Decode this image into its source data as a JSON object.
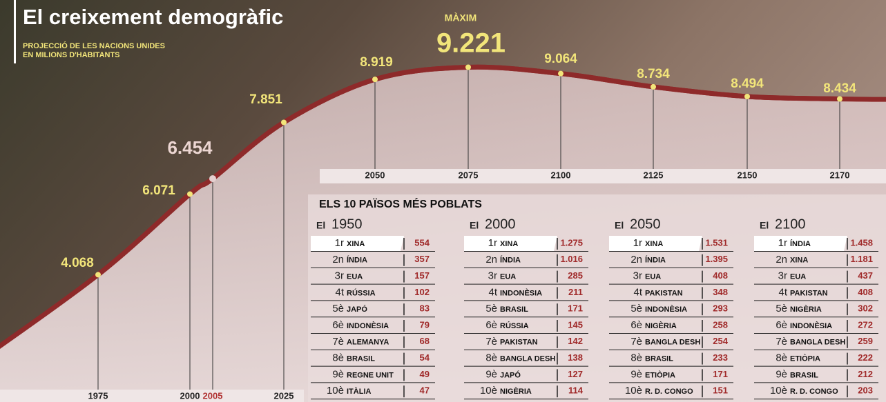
{
  "chart_data": {
    "type": "line",
    "title": "El creixement demogràfic",
    "subtitle": [
      "PROJECCIÓ DE LES NACIONS UNIDES",
      "EN MILIONS D'HABITANTS"
    ],
    "annotation": "MÀXIM",
    "x": [
      "1975",
      "2000",
      "2005",
      "2025",
      "2050",
      "2075",
      "2100",
      "2125",
      "2150",
      "2170"
    ],
    "values": [
      4068,
      6071,
      6454,
      7851,
      8919,
      9221,
      9064,
      8734,
      8494,
      8434
    ],
    "value_labels": [
      "4.068",
      "6.071",
      "6.454",
      "7.851",
      "8.919",
      "9.221",
      "9.064",
      "8.734",
      "8.494",
      "8.434"
    ],
    "ylim": [
      0,
      10000
    ],
    "color": "#8e2a2a"
  },
  "ranking": {
    "title": "ELS 10 PAÏSOS MÉS POBLATS",
    "tables": [
      {
        "prefix": "El",
        "year": "1950",
        "rows": [
          [
            "1r",
            "XINA",
            "554"
          ],
          [
            "2n",
            "ÍNDIA",
            "357"
          ],
          [
            "3r",
            "EUA",
            "157"
          ],
          [
            "4t",
            "RÚSSIA",
            "102"
          ],
          [
            "5è",
            "JAPÓ",
            "83"
          ],
          [
            "6è",
            "INDONÈSIA",
            "79"
          ],
          [
            "7è",
            "ALEMANYA",
            "68"
          ],
          [
            "8è",
            "BRASIL",
            "54"
          ],
          [
            "9è",
            "REGNE UNIT",
            "49"
          ],
          [
            "10è",
            "ITÀLIA",
            "47"
          ]
        ]
      },
      {
        "prefix": "El",
        "year": "2000",
        "rows": [
          [
            "1r",
            "XINA",
            "1.275"
          ],
          [
            "2n",
            "ÍNDIA",
            "1.016"
          ],
          [
            "3r",
            "EUA",
            "285"
          ],
          [
            "4t",
            "INDONÈSIA",
            "211"
          ],
          [
            "5è",
            "BRASIL",
            "171"
          ],
          [
            "6è",
            "RÚSSIA",
            "145"
          ],
          [
            "7è",
            "PAKISTAN",
            "142"
          ],
          [
            "8è",
            "BANGLA DESH",
            "138"
          ],
          [
            "9è",
            "JAPÓ",
            "127"
          ],
          [
            "10è",
            "NIGÈRIA",
            "114"
          ]
        ]
      },
      {
        "prefix": "El",
        "year": "2050",
        "rows": [
          [
            "1r",
            "XINA",
            "1.531"
          ],
          [
            "2n",
            "ÍNDIA",
            "1.395"
          ],
          [
            "3r",
            "EUA",
            "408"
          ],
          [
            "4t",
            "PAKISTAN",
            "348"
          ],
          [
            "5è",
            "INDONÈSIA",
            "293"
          ],
          [
            "6è",
            "NIGÈRIA",
            "258"
          ],
          [
            "7è",
            "BANGLA DESH",
            "254"
          ],
          [
            "8è",
            "BRASIL",
            "233"
          ],
          [
            "9è",
            "ETIÒPIA",
            "171"
          ],
          [
            "10è",
            "R. D. CONGO",
            "151"
          ]
        ]
      },
      {
        "prefix": "El",
        "year": "2100",
        "rows": [
          [
            "1r",
            "ÍNDIA",
            "1.458"
          ],
          [
            "2n",
            "XINA",
            "1.181"
          ],
          [
            "3r",
            "EUA",
            "437"
          ],
          [
            "4t",
            "PAKISTAN",
            "408"
          ],
          [
            "5è",
            "NIGÈRIA",
            "302"
          ],
          [
            "6è",
            "INDONÈSIA",
            "272"
          ],
          [
            "7è",
            "BANGLA DESH",
            "259"
          ],
          [
            "8è",
            "ETIÒPIA",
            "222"
          ],
          [
            "9è",
            "BRASIL",
            "212"
          ],
          [
            "10è",
            "R. D. CONGO",
            "203"
          ]
        ]
      }
    ]
  }
}
